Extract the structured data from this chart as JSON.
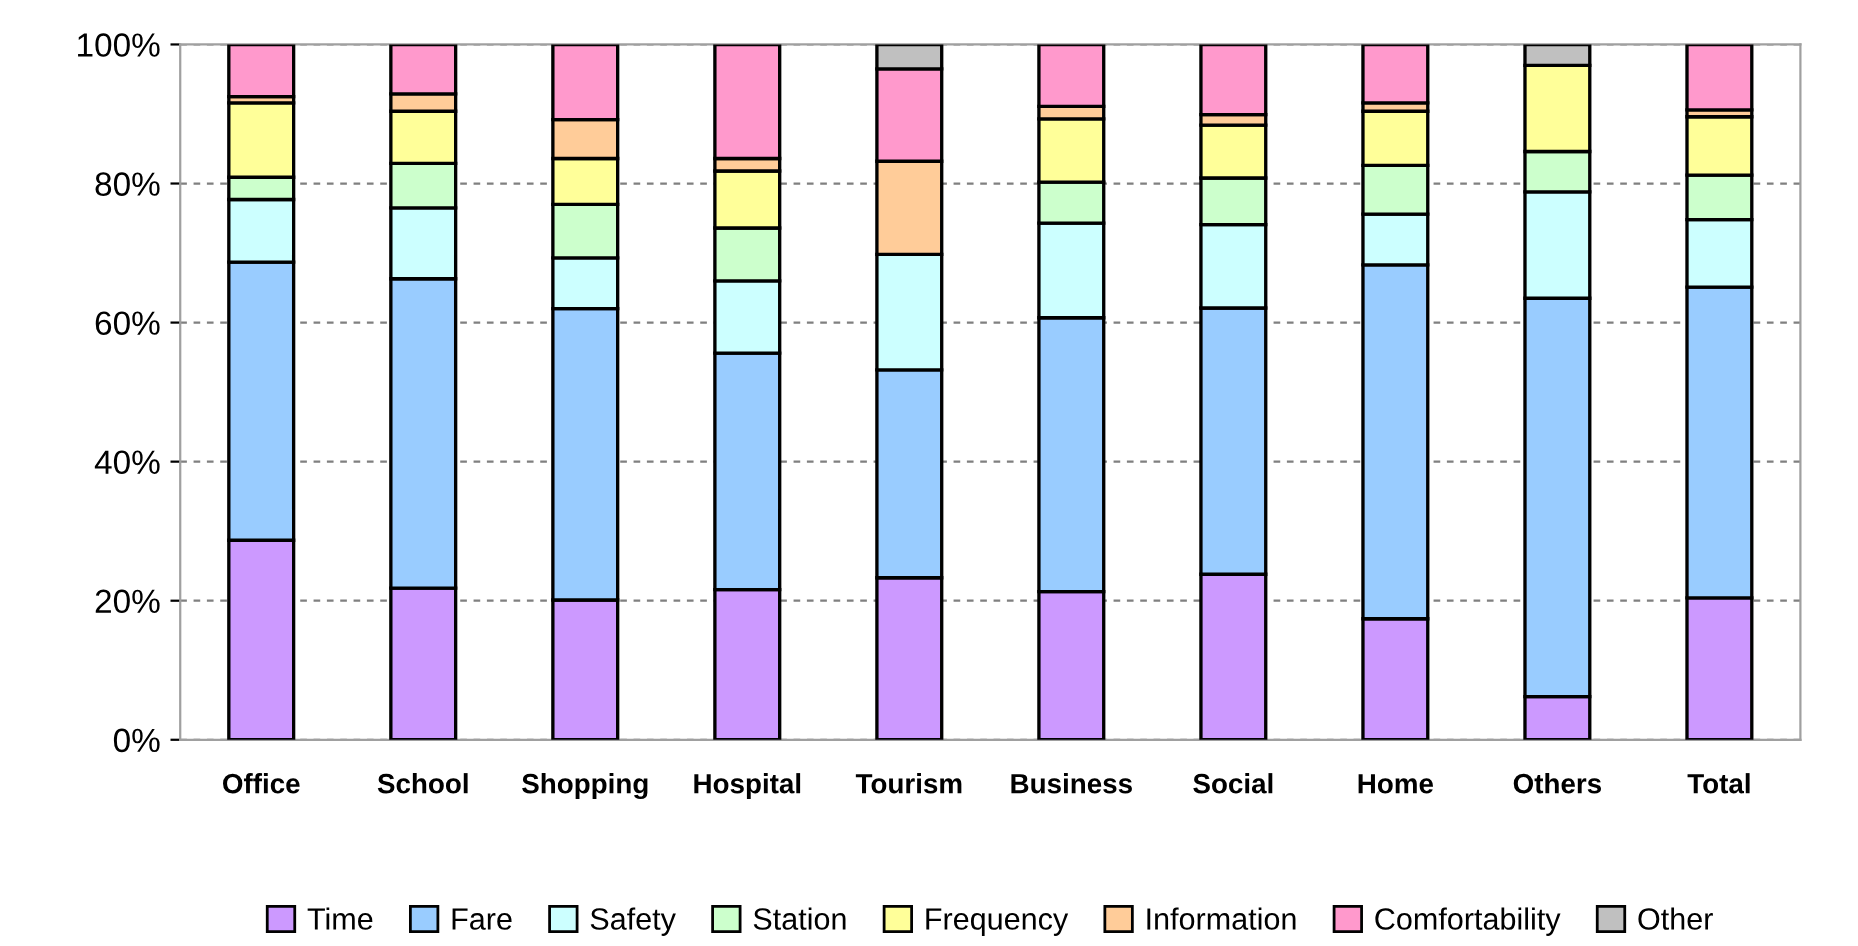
{
  "chart_data": {
    "type": "bar",
    "stacked": true,
    "categories": [
      "Office",
      "School",
      "Shopping",
      "Hospital",
      "Tourism",
      "Business",
      "Social",
      "Home",
      "Others",
      "Total"
    ],
    "series": [
      {
        "name": "Time",
        "color": "#cc99ff",
        "values": [
          28.7,
          21.8,
          20.1,
          21.6,
          23.3,
          21.3,
          23.8,
          17.4,
          6.2,
          20.4
        ]
      },
      {
        "name": "Fare",
        "color": "#99ccff",
        "values": [
          40.0,
          44.5,
          41.9,
          34.0,
          29.9,
          39.4,
          38.3,
          50.9,
          57.3,
          44.7
        ]
      },
      {
        "name": "Safety",
        "color": "#ccffff",
        "values": [
          9.0,
          10.2,
          7.3,
          10.4,
          16.6,
          13.6,
          12.0,
          7.3,
          15.3,
          9.7
        ]
      },
      {
        "name": "Station",
        "color": "#ccffcc",
        "values": [
          3.2,
          6.4,
          7.7,
          7.6,
          null,
          5.9,
          6.7,
          7.0,
          5.8,
          6.4
        ]
      },
      {
        "name": "Frequency",
        "color": "#ffff99",
        "values": [
          10.7,
          7.5,
          6.6,
          8.2,
          null,
          9.1,
          7.6,
          7.8,
          12.4,
          8.4
        ]
      },
      {
        "name": "Information",
        "color": "#ffcc99",
        "values": [
          0.9,
          2.5,
          5.6,
          1.8,
          13.4,
          1.8,
          1.5,
          1.2,
          null,
          1.0
        ]
      },
      {
        "name": "Comfortability",
        "color": "#ff99cc",
        "values": [
          7.5,
          7.1,
          10.8,
          16.4,
          13.3,
          8.9,
          10.1,
          8.4,
          null,
          9.4
        ]
      },
      {
        "name": "Other",
        "color": "#c0c0c0",
        "values": [
          null,
          null,
          null,
          null,
          3.5,
          null,
          null,
          null,
          3.0,
          null
        ]
      }
    ],
    "ylim": [
      0,
      100
    ],
    "yticks": [
      {
        "value": 0,
        "label": "0%"
      },
      {
        "value": 20,
        "label": "20%"
      },
      {
        "value": 40,
        "label": "40%"
      },
      {
        "value": 60,
        "label": "60%"
      },
      {
        "value": 80,
        "label": "80%"
      },
      {
        "value": 100,
        "label": "100%"
      }
    ],
    "grid": "y",
    "legend": "bottom"
  }
}
